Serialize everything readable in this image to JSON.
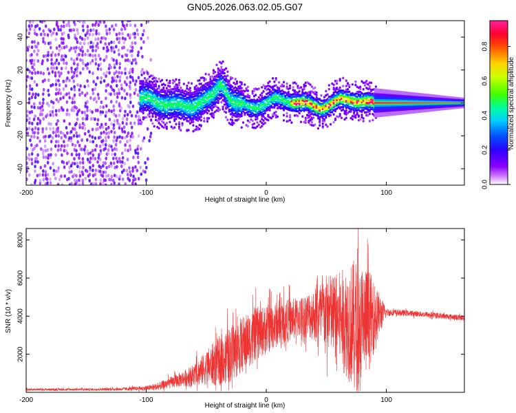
{
  "chart_data": [
    {
      "type": "heatmap",
      "title": "GN05.2026.063.02.05.G07",
      "xlabel": "Height of straight line (km)",
      "ylabel": "Frequency (Hz)",
      "xlim": [
        -200,
        165
      ],
      "ylim": [
        -50,
        50
      ],
      "xticks": [
        -200,
        -100,
        0,
        100
      ],
      "yticks": [
        -40,
        -20,
        0,
        20,
        40
      ],
      "xtick_labels": [
        "-200",
        "-100",
        "0",
        "100"
      ],
      "ytick_labels": [
        "-40",
        "-20",
        "0",
        "20",
        "40"
      ],
      "colorbar": {
        "label": "Normalized spectral amplitude",
        "range": [
          0.0,
          0.95
        ],
        "ticks": [
          0.0,
          0.2,
          0.4,
          0.6,
          0.8
        ],
        "tick_labels": [
          "0.0",
          "0.2",
          "0.4",
          "0.6",
          "0.8"
        ],
        "colors": [
          "#ffffff",
          "#8a00ff",
          "#2d00ff",
          "#0055ff",
          "#00d0ff",
          "#00ff60",
          "#50ff00",
          "#ffff00",
          "#ff7a00",
          "#ff0000",
          "#ff1060",
          "#ff20a0"
        ]
      },
      "features": {
        "noise_region_km": [
          -200,
          -95
        ],
        "signal_start_km": -105,
        "central_trace_hz": 0,
        "peak_amplitude_region_km": [
          20,
          90
        ],
        "bump_near_km": -37,
        "bump_peak_hz": 18
      }
    },
    {
      "type": "line",
      "xlabel": "Height of straight line (km)",
      "ylabel": "SNR (10 * v/v)",
      "xlim": [
        -200,
        165
      ],
      "ylim": [
        0,
        8600
      ],
      "xticks": [
        -200,
        -100,
        0,
        100
      ],
      "yticks": [
        2000,
        4000,
        6000,
        8000
      ],
      "xtick_labels": [
        "-200",
        "-100",
        "0",
        "100"
      ],
      "ytick_labels": [
        "2000",
        "4000",
        "6000",
        "8000"
      ],
      "series": [
        {
          "name": "SNR",
          "color": "#ee3333",
          "envelope_x": [
            -200,
            -150,
            -120,
            -100,
            -90,
            -80,
            -70,
            -60,
            -50,
            -40,
            -30,
            -20,
            -10,
            0,
            10,
            20,
            30,
            40,
            50,
            60,
            70,
            75,
            80,
            85,
            90,
            95,
            100,
            120,
            140,
            165
          ],
          "envelope_mean": [
            150,
            150,
            170,
            220,
            300,
            500,
            700,
            900,
            1300,
            1600,
            2000,
            2500,
            3000,
            3300,
            3600,
            3800,
            4000,
            4100,
            4200,
            3900,
            3600,
            3500,
            3600,
            3800,
            4000,
            4100,
            4200,
            4150,
            4050,
            3900
          ],
          "envelope_amp": [
            60,
            60,
            80,
            120,
            200,
            300,
            400,
            600,
            900,
            1300,
            1500,
            1500,
            1400,
            1300,
            1200,
            1100,
            1100,
            1400,
            2000,
            2400,
            3200,
            3600,
            3200,
            2800,
            1800,
            1000,
            200,
            150,
            150,
            150
          ]
        }
      ]
    }
  ]
}
